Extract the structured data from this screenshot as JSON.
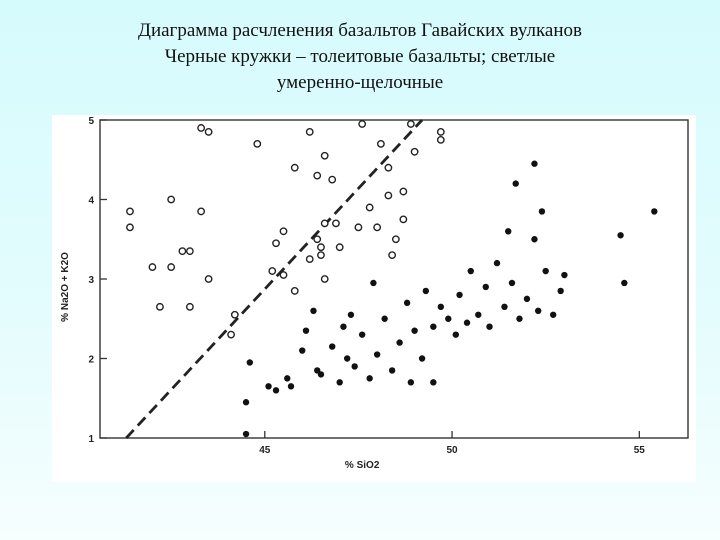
{
  "title": {
    "line1": "Диаграмма расчленения базальтов Гавайских вулканов",
    "line2": "Черные кружки – толеитовые базальты; светлые",
    "line3": "умеренно-щелочные"
  },
  "chart_data": {
    "type": "scatter",
    "xlabel": "% SiO2",
    "ylabel": "% Na2O + K2O",
    "xlim": [
      40.6,
      56.3
    ],
    "ylim": [
      1,
      5
    ],
    "xticks": [
      45,
      50,
      55
    ],
    "yticks": [
      1,
      2,
      3,
      4,
      5
    ],
    "grid": false,
    "dividing_line": {
      "style": "dashed",
      "points": [
        [
          41.3,
          1.0
        ],
        [
          49.2,
          5.0
        ]
      ]
    },
    "series": [
      {
        "marker": "open-circle",
        "points": [
          [
            41.4,
            3.85
          ],
          [
            41.4,
            3.65
          ],
          [
            42.0,
            3.15
          ],
          [
            42.5,
            4.0
          ],
          [
            42.5,
            3.15
          ],
          [
            42.8,
            3.35
          ],
          [
            43.0,
            3.35
          ],
          [
            43.0,
            2.65
          ],
          [
            43.3,
            4.9
          ],
          [
            43.3,
            3.85
          ],
          [
            43.5,
            4.85
          ],
          [
            43.5,
            3.0
          ],
          [
            44.1,
            2.3
          ],
          [
            44.2,
            2.55
          ],
          [
            44.8,
            4.7
          ],
          [
            45.2,
            3.1
          ],
          [
            45.3,
            3.45
          ],
          [
            45.5,
            3.6
          ],
          [
            45.5,
            3.05
          ],
          [
            45.8,
            4.4
          ],
          [
            45.8,
            2.85
          ],
          [
            46.2,
            4.85
          ],
          [
            46.2,
            3.25
          ],
          [
            46.4,
            4.3
          ],
          [
            46.4,
            3.5
          ],
          [
            46.5,
            3.4
          ],
          [
            46.5,
            3.3
          ],
          [
            46.6,
            4.55
          ],
          [
            46.6,
            3.7
          ],
          [
            46.6,
            3.0
          ],
          [
            46.8,
            4.25
          ],
          [
            46.9,
            3.7
          ],
          [
            47.0,
            3.4
          ],
          [
            47.5,
            3.65
          ],
          [
            47.6,
            4.95
          ],
          [
            47.8,
            3.9
          ],
          [
            48.0,
            3.65
          ],
          [
            48.1,
            4.7
          ],
          [
            48.3,
            4.4
          ],
          [
            48.3,
            4.05
          ],
          [
            48.4,
            3.3
          ],
          [
            48.5,
            3.5
          ],
          [
            48.7,
            4.1
          ],
          [
            48.7,
            3.75
          ],
          [
            48.9,
            4.95
          ],
          [
            49.0,
            4.6
          ],
          [
            49.7,
            4.85
          ],
          [
            49.7,
            4.75
          ],
          [
            42.2,
            2.65
          ]
        ]
      },
      {
        "marker": "filled-circle",
        "points": [
          [
            44.5,
            1.45
          ],
          [
            44.6,
            1.95
          ],
          [
            45.1,
            1.65
          ],
          [
            45.6,
            1.75
          ],
          [
            45.7,
            1.65
          ],
          [
            46.0,
            2.1
          ],
          [
            46.1,
            2.35
          ],
          [
            46.3,
            2.6
          ],
          [
            46.5,
            1.8
          ],
          [
            46.8,
            2.15
          ],
          [
            47.0,
            1.7
          ],
          [
            47.1,
            2.4
          ],
          [
            47.2,
            2.0
          ],
          [
            47.4,
            1.9
          ],
          [
            47.6,
            2.3
          ],
          [
            47.8,
            1.75
          ],
          [
            48.0,
            2.05
          ],
          [
            48.2,
            2.5
          ],
          [
            48.4,
            1.85
          ],
          [
            48.6,
            2.2
          ],
          [
            48.8,
            2.7
          ],
          [
            49.0,
            2.35
          ],
          [
            49.2,
            2.0
          ],
          [
            49.3,
            2.85
          ],
          [
            49.5,
            2.4
          ],
          [
            49.7,
            2.65
          ],
          [
            49.9,
            2.5
          ],
          [
            50.1,
            2.3
          ],
          [
            50.2,
            2.8
          ],
          [
            50.4,
            2.45
          ],
          [
            50.5,
            3.1
          ],
          [
            50.7,
            2.55
          ],
          [
            50.9,
            2.9
          ],
          [
            51.0,
            2.4
          ],
          [
            51.2,
            3.2
          ],
          [
            51.4,
            2.65
          ],
          [
            51.6,
            2.95
          ],
          [
            51.8,
            2.5
          ],
          [
            52.0,
            2.75
          ],
          [
            52.3,
            2.6
          ],
          [
            52.5,
            3.1
          ],
          [
            52.7,
            2.55
          ],
          [
            52.9,
            2.85
          ],
          [
            53.0,
            3.05
          ],
          [
            52.2,
            3.5
          ],
          [
            51.5,
            3.6
          ],
          [
            51.7,
            4.2
          ],
          [
            52.2,
            4.45
          ],
          [
            52.4,
            3.85
          ],
          [
            54.5,
            3.55
          ],
          [
            54.6,
            2.95
          ],
          [
            55.4,
            3.85
          ],
          [
            47.9,
            2.95
          ],
          [
            49.5,
            1.7
          ],
          [
            47.3,
            2.55
          ],
          [
            48.9,
            1.7
          ],
          [
            46.4,
            1.85
          ],
          [
            45.3,
            1.6
          ],
          [
            44.5,
            1.05
          ]
        ]
      }
    ]
  }
}
